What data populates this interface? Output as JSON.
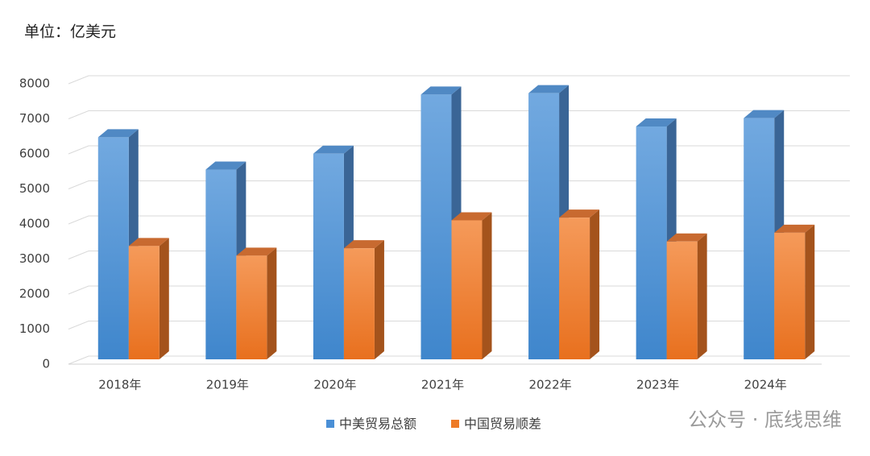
{
  "chart_data": {
    "type": "bar3d",
    "unit_note": "单位：亿美元",
    "categories": [
      "2018年",
      "2019年",
      "2020年",
      "2021年",
      "2022年",
      "2023年",
      "2024年"
    ],
    "series": [
      {
        "name": "中美贸易总额",
        "color": "#4a8fd6",
        "values": [
          6335,
          5413,
          5867,
          7556,
          7594,
          6644,
          6882
        ]
      },
      {
        "name": "中国贸易顺差",
        "color": "#ee7a26",
        "values": [
          3233,
          2958,
          3169,
          3966,
          4043,
          3361,
          3611
        ]
      }
    ],
    "ylim": [
      0,
      8000
    ],
    "yticks": [
      0,
      1000,
      2000,
      3000,
      4000,
      5000,
      6000,
      7000,
      8000
    ],
    "grid": true,
    "legend": "bottom",
    "watermark": "公众号 · 底线思维"
  }
}
